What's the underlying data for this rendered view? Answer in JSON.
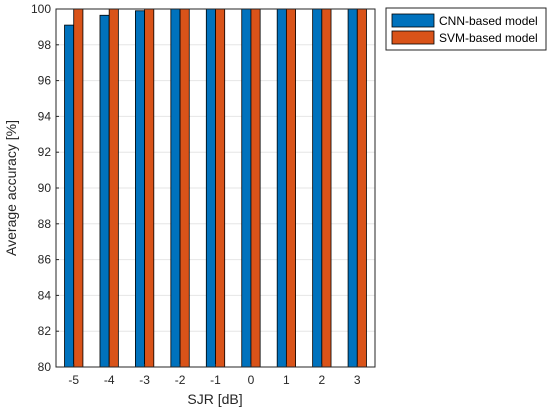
{
  "chart_data": {
    "type": "bar",
    "categories": [
      "-5",
      "-4",
      "-3",
      "-2",
      "-1",
      "0",
      "1",
      "2",
      "3"
    ],
    "series": [
      {
        "name": "CNN-based model",
        "color": "#0072BD",
        "values": [
          99.1,
          99.65,
          99.9,
          100,
          100,
          100,
          100,
          100,
          100
        ]
      },
      {
        "name": "SVM-based model",
        "color": "#D95319",
        "values": [
          100,
          100,
          100,
          100,
          100,
          100,
          100,
          100,
          100
        ]
      }
    ],
    "title": "",
    "xlabel": "SJR [dB]",
    "ylabel": "Average accuracy [%]",
    "ylim": [
      80,
      100
    ],
    "yticks": [
      "80",
      "82",
      "84",
      "86",
      "88",
      "90",
      "92",
      "94",
      "96",
      "98",
      "100"
    ],
    "grid": true,
    "legend_position": "outside-top-right"
  }
}
